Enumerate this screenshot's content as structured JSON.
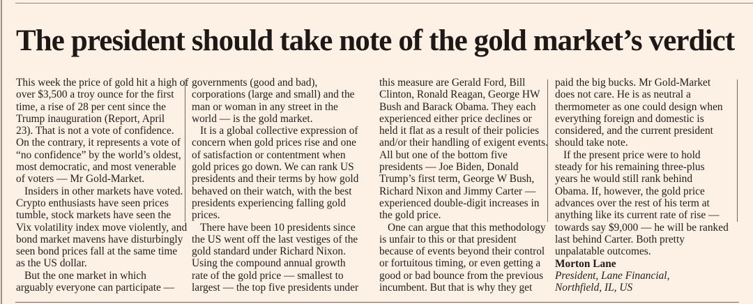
{
  "headline": "The president should take note of the gold market’s verdict",
  "columns": [
    [
      {
        "t": "This week the price of gold hit a high of"
      },
      {
        "t": "over $3,500 a troy ounce for the first"
      },
      {
        "t": "time, a rise of 28 per cent since the"
      },
      {
        "t": "Trump inauguration (Report, April"
      },
      {
        "t": "23). That is not a vote of confidence."
      },
      {
        "t": "On the contrary, it represents a vote of"
      },
      {
        "t": "“no confidence” by the world’s oldest,"
      },
      {
        "t": "most democratic, and most venerable"
      },
      {
        "t": "of voters — Mr Gold-Market."
      },
      {
        "t": "Insiders in other markets have voted.",
        "ind": true
      },
      {
        "t": "Crypto enthusiasts have seen prices"
      },
      {
        "t": "tumble, stock markets have seen the"
      },
      {
        "t": "Vix volatility index move violently, and"
      },
      {
        "t": "bond market mavens have disturbingly"
      },
      {
        "t": "seen bond prices fall at the same time"
      },
      {
        "t": "as the US dollar."
      },
      {
        "t": "But the one market in which",
        "ind": true
      },
      {
        "t": "arguably everyone can participate —"
      }
    ],
    [
      {
        "t": "governments (good and bad),"
      },
      {
        "t": "corporations (large and small) and the"
      },
      {
        "t": "man or woman in any street in the"
      },
      {
        "t": "world — is the gold market."
      },
      {
        "t": "It is a global collective expression of",
        "ind": true
      },
      {
        "t": "concern when gold prices rise and one"
      },
      {
        "t": "of satisfaction or contentment when"
      },
      {
        "t": "gold prices go down. We can rank US"
      },
      {
        "t": "presidents and their terms by how gold"
      },
      {
        "t": "behaved on their watch, with the best"
      },
      {
        "t": "presidents experiencing falling gold"
      },
      {
        "t": "prices."
      },
      {
        "t": "There have been 10 presidents since",
        "ind": true
      },
      {
        "t": "the US went off the last vestiges of the"
      },
      {
        "t": "gold standard under Richard Nixon."
      },
      {
        "t": "Using the compound annual growth"
      },
      {
        "t": "rate of the gold price — smallest to"
      },
      {
        "t": "largest — the top five presidents under"
      }
    ],
    [
      {
        "t": "this measure are Gerald Ford, Bill"
      },
      {
        "t": "Clinton, Ronald Reagan, George HW"
      },
      {
        "t": "Bush and Barack Obama. They each"
      },
      {
        "t": "experienced either price declines or"
      },
      {
        "t": "held it flat as a result of their policies"
      },
      {
        "t": "and/or their handling of exigent events."
      },
      {
        "t": "All but one of the bottom five"
      },
      {
        "t": "presidents — Joe Biden, Donald"
      },
      {
        "t": "Trump’s first term, George W Bush,"
      },
      {
        "t": "Richard Nixon and Jimmy Carter —"
      },
      {
        "t": "experienced double-digit increases in"
      },
      {
        "t": "the gold price."
      },
      {
        "t": "One can argue that this methodology",
        "ind": true
      },
      {
        "t": "is unfair to this or that president"
      },
      {
        "t": "because of events beyond their control"
      },
      {
        "t": "or fortuitous timing, or even getting a"
      },
      {
        "t": "good or bad bounce from the previous"
      },
      {
        "t": "incumbent. But that is why they get"
      }
    ],
    [
      {
        "t": "paid the big bucks. Mr Gold-Market"
      },
      {
        "t": "does not care. He is as neutral a"
      },
      {
        "t": "thermometer as one could design when"
      },
      {
        "t": "everything foreign and domestic is"
      },
      {
        "t": "considered, and the current president"
      },
      {
        "t": "should take note."
      },
      {
        "t": "If the present price were to hold",
        "ind": true
      },
      {
        "t": "steady for his remaining three-plus"
      },
      {
        "t": "years he would still rank behind"
      },
      {
        "t": "Obama. If, however, the gold price"
      },
      {
        "t": "advances over the rest of his term at"
      },
      {
        "t": "anything like its current rate of rise —"
      },
      {
        "t": "towards say $9,000 — he will be ranked"
      },
      {
        "t": "last behind Carter. Both pretty"
      },
      {
        "t": "unpalatable outcomes."
      }
    ]
  ],
  "signature": {
    "name": "Morton Lane",
    "title_line1": "President, Lane Financial,",
    "title_line2": "Northfield, IL, US"
  }
}
